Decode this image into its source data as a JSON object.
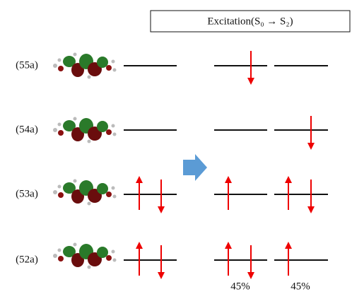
{
  "header": {
    "title": "Excitation(S₀ → S₂)"
  },
  "orbitals": [
    {
      "label": "(55a)"
    },
    {
      "label": "(54a)"
    },
    {
      "label": "(53a)"
    },
    {
      "label": "(52a)"
    }
  ],
  "configurations": [
    {
      "percent": "45%"
    },
    {
      "percent": "45%"
    }
  ]
}
